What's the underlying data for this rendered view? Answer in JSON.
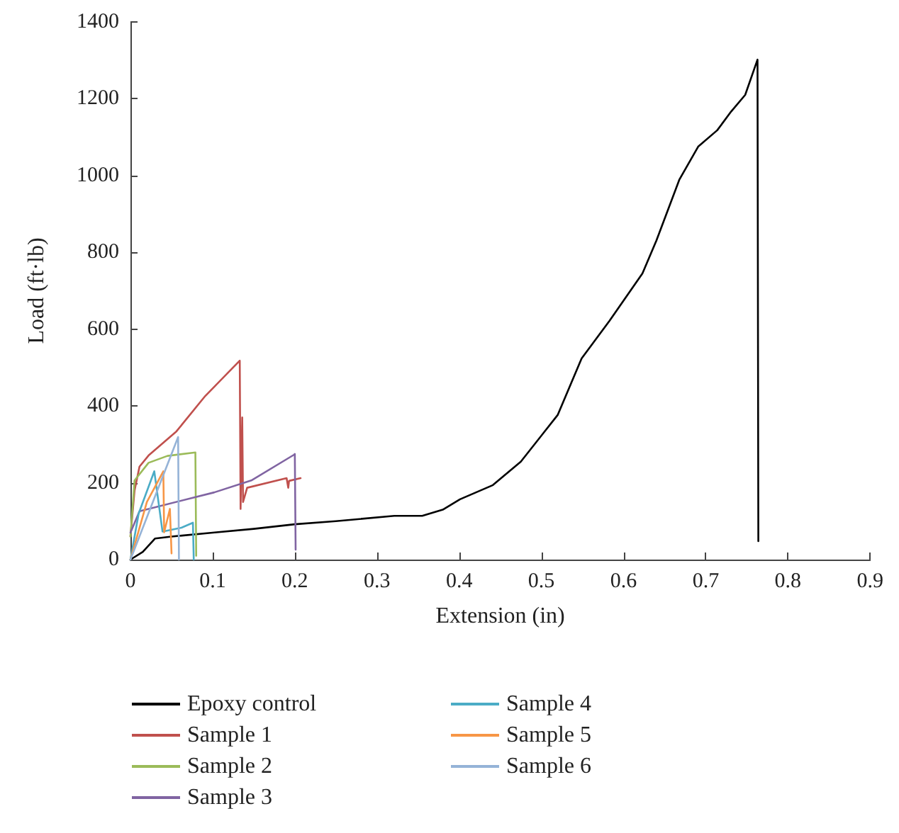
{
  "chart_data": {
    "type": "line",
    "xlabel": "Extension (in)",
    "ylabel": "Load (ft·lb)",
    "xlim": [
      0,
      0.9
    ],
    "xticks": [
      0,
      0.1,
      0.2,
      0.3,
      0.4,
      0.5,
      0.6,
      0.7,
      0.8,
      0.9
    ],
    "ylim": [
      0,
      1400
    ],
    "yticks": [
      0,
      200,
      400,
      600,
      800,
      1000,
      1200,
      1400
    ],
    "grid": false,
    "legend": "bottom",
    "marker": "none",
    "line_style": "solid",
    "series": [
      {
        "name": "Epoxy control",
        "color": "#000000",
        "x": [
          0,
          0.015,
          0.03,
          0.05,
          0.1,
          0.15,
          0.2,
          0.25,
          0.321,
          0.355,
          0.38,
          0.401,
          0.441,
          0.475,
          0.52,
          0.549,
          0.583,
          0.623,
          0.64,
          0.668,
          0.691,
          0.714,
          0.731,
          0.748,
          0.763,
          0.764
        ],
        "values": [
          0,
          20,
          55,
          60,
          70,
          80,
          92,
          100,
          114,
          114,
          130,
          157,
          194,
          255,
          377,
          524,
          622,
          745,
          831,
          990,
          1076,
          1118,
          1167,
          1210,
          1302,
          48
        ]
      },
      {
        "name": "Sample 1",
        "color": "#c0504d",
        "x": [
          0,
          0.005,
          0.011,
          0.022,
          0.056,
          0.091,
          0.133,
          0.134,
          0.136,
          0.137,
          0.142,
          0.19,
          0.192,
          0.193,
          0.207
        ],
        "values": [
          60,
          180,
          242,
          271,
          334,
          426,
          518,
          132,
          370,
          150,
          187,
          212,
          187,
          205,
          212
        ]
      },
      {
        "name": "Sample 2",
        "color": "#9bbb59",
        "x": [
          0,
          0.005,
          0.022,
          0.045,
          0.079,
          0.08
        ],
        "values": [
          60,
          206,
          252,
          270,
          279,
          10
        ]
      },
      {
        "name": "Sample 3",
        "color": "#8064a2",
        "x": [
          0,
          0.011,
          0.102,
          0.147,
          0.199,
          0.2,
          0.201
        ],
        "values": [
          70,
          126,
          175,
          206,
          273,
          275,
          26
        ]
      },
      {
        "name": "Sample 4",
        "color": "#4bacc6",
        "x": [
          0,
          0.01,
          0.029,
          0.039,
          0.062,
          0.076,
          0.077
        ],
        "values": [
          0,
          120,
          230,
          73,
          83,
          96,
          0
        ]
      },
      {
        "name": "Sample 5",
        "color": "#f79646",
        "x": [
          0,
          0.02,
          0.04,
          0.041,
          0.048,
          0.05
        ],
        "values": [
          0,
          150,
          230,
          71,
          132,
          16
        ]
      },
      {
        "name": "Sample 6",
        "color": "#95b3d7",
        "x": [
          0,
          0.058,
          0.059
        ],
        "values": [
          0,
          319,
          0
        ]
      }
    ]
  }
}
